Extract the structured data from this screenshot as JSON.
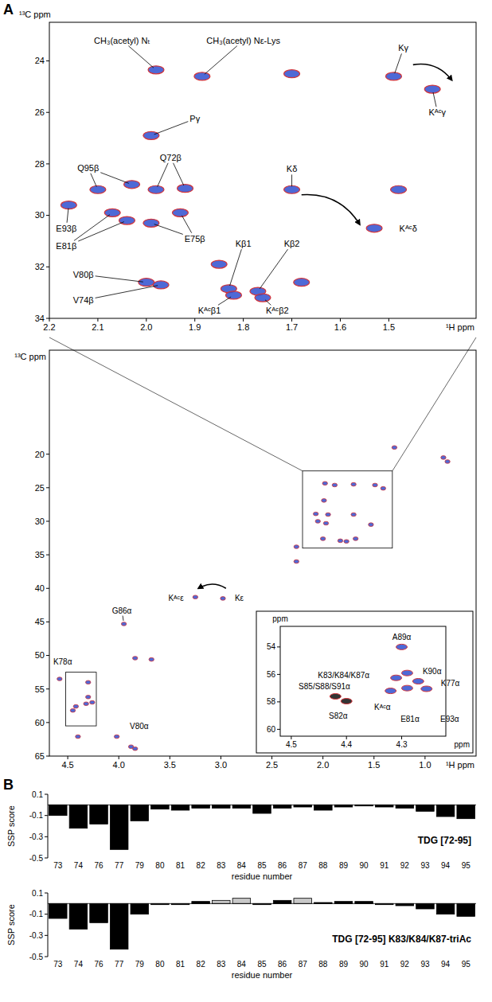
{
  "panel_labels": [
    "A",
    "B"
  ],
  "chart_data": [
    {
      "type": "scatter",
      "x_label": "¹H ppm",
      "y_label": "¹³C ppm",
      "xlim": [
        2.2,
        1.32
      ],
      "ylim": [
        22.5,
        34
      ],
      "xticks": [
        2.2,
        2.1,
        {
          "value": 2,
          "label": "2.0"
        },
        1.9,
        1.8,
        1.7,
        1.6,
        1.5
      ],
      "yticks": [
        24,
        26,
        28,
        30,
        32,
        34
      ],
      "series": [
        {
          "color": "#2f4fcf",
          "x": [
            1.98,
            1.885,
            1.7,
            1.49,
            1.41,
            1.99,
            2.1,
            2.03,
            1.98,
            1.92,
            2.16,
            2.07,
            2.04,
            1.99,
            1.93,
            1.7,
            1.53,
            1.48,
            2.0,
            1.97,
            1.85,
            1.83,
            1.82,
            1.77,
            1.76,
            1.68
          ],
          "values": [
            24.35,
            24.6,
            24.5,
            24.6,
            25.1,
            26.9,
            29.0,
            28.8,
            29.0,
            28.95,
            29.6,
            29.9,
            30.2,
            30.3,
            29.9,
            29.0,
            30.5,
            29.0,
            32.6,
            32.7,
            31.9,
            32.85,
            33.1,
            32.95,
            33.2,
            32.6
          ]
        }
      ],
      "annotations": [
        {
          "text": "CH₃(acetyl) Nₜ",
          "x": 2.05,
          "y": 23.2,
          "points": [
            [
              1.98,
              24.35
            ]
          ]
        },
        {
          "text": "CH₃(acetyl) Nε-Lys",
          "x": 1.8,
          "y": 23.2,
          "points": [
            [
              1.885,
              24.6
            ]
          ]
        },
        {
          "text": "Kγ",
          "x": 1.47,
          "y": 23.5,
          "points": [
            [
              1.49,
              24.6
            ]
          ]
        },
        {
          "text": "Kᴬᶜγ",
          "x": 1.4,
          "y": 26.0,
          "points": [
            [
              1.41,
              25.1
            ]
          ]
        },
        {
          "text": "Pγ",
          "x": 1.9,
          "y": 26.25,
          "points": [
            [
              1.99,
              26.9
            ]
          ]
        },
        {
          "text": "Q72β",
          "x": 1.95,
          "y": 27.75,
          "points": [
            [
              1.98,
              29.0
            ],
            [
              1.92,
              28.95
            ]
          ]
        },
        {
          "text": "Q95β",
          "x": 2.12,
          "y": 28.15,
          "points": [
            [
              2.1,
              29.0
            ],
            [
              2.03,
              28.8
            ]
          ]
        },
        {
          "text": "Kδ",
          "x": 1.7,
          "y": 28.2,
          "points": [
            [
              1.7,
              29.0
            ]
          ]
        },
        {
          "text": "E93β",
          "x": 2.165,
          "y": 30.5,
          "points": [
            [
              2.16,
              29.6
            ]
          ]
        },
        {
          "text": "E81β",
          "x": 2.165,
          "y": 31.2,
          "points": [
            [
              2.07,
              29.9
            ],
            [
              2.04,
              30.2
            ]
          ]
        },
        {
          "text": "E75β",
          "x": 1.9,
          "y": 30.9,
          "points": [
            [
              1.99,
              30.3
            ],
            [
              1.93,
              29.9
            ]
          ]
        },
        {
          "text": "Kᴬᶜδ",
          "x": 1.46,
          "y": 30.5
        },
        {
          "text": "Kβ1",
          "x": 1.8,
          "y": 31.1,
          "points": [
            [
              1.83,
              32.85
            ]
          ]
        },
        {
          "text": "Kβ2",
          "x": 1.7,
          "y": 31.1,
          "points": [
            [
              1.77,
              32.95
            ]
          ]
        },
        {
          "text": "V80β",
          "x": 2.13,
          "y": 32.3,
          "points": [
            [
              2.0,
              32.6
            ]
          ]
        },
        {
          "text": "V74β",
          "x": 2.13,
          "y": 33.3,
          "points": [
            [
              1.97,
              32.7
            ]
          ]
        },
        {
          "text": "Kᴬᶜβ1",
          "x": 1.87,
          "y": 33.7,
          "points": [
            [
              1.82,
              33.1
            ]
          ]
        },
        {
          "text": "Kᴬᶜβ2",
          "x": 1.73,
          "y": 33.7,
          "points": [
            [
              1.76,
              33.2
            ]
          ]
        }
      ],
      "arrows": [
        {
          "from": [
            1.45,
            24.15
          ],
          "to": [
            1.37,
            24.75
          ]
        },
        {
          "from": [
            1.68,
            29.2
          ],
          "to": [
            1.56,
            30.35
          ]
        }
      ]
    },
    {
      "type": "scatter",
      "x_label": "¹H ppm",
      "y_label": "¹³C ppm",
      "xlim": [
        4.68,
        0.5
      ],
      "ylim": [
        4.5,
        65
      ],
      "xticks": [
        4.5,
        {
          "value": 4,
          "label": "4.0"
        },
        3.5,
        {
          "value": 3,
          "label": "3.0"
        },
        2.5,
        {
          "value": 2,
          "label": "2.0"
        },
        1.5,
        {
          "value": 1,
          "label": "1.0"
        }
      ],
      "yticks": [
        20,
        25,
        30,
        35,
        40,
        45,
        50,
        55,
        60,
        65
      ],
      "series": [
        {
          "color": "#2f4fcf",
          "x": [
            1.3,
            0.82,
            0.78,
            1.98,
            1.885,
            1.7,
            1.49,
            1.41,
            1.99,
            2.07,
            1.95,
            2.05,
            1.97,
            1.7,
            1.53,
            2.0,
            1.83,
            1.77,
            1.68,
            2.26,
            2.26,
            2.98,
            3.25,
            3.95,
            3.84,
            3.68,
            4.58,
            4.45,
            4.4,
            4.02,
            3.88,
            3.84,
            4.3,
            4.3,
            4.32,
            4.42,
            4.26
          ],
          "values": [
            19.0,
            20.5,
            21.1,
            24.35,
            24.6,
            24.5,
            24.6,
            25.1,
            26.9,
            28.9,
            29.0,
            30.0,
            30.3,
            29.0,
            30.5,
            32.6,
            32.9,
            33.0,
            32.6,
            33.8,
            36.0,
            41.5,
            41.3,
            45.3,
            50.4,
            50.6,
            53.5,
            58.2,
            62.1,
            62.1,
            63.6,
            63.9,
            54.0,
            56.2,
            57.2,
            57.6,
            57.0
          ]
        }
      ],
      "annotations": [
        {
          "text": "G86α",
          "x": 3.97,
          "y": 43.3,
          "points": [
            [
              3.95,
              45.3
            ]
          ]
        },
        {
          "text": "Kε",
          "x": 2.82,
          "y": 41.4
        },
        {
          "text": "Kᴬᶜε",
          "x": 3.44,
          "y": 41.4
        },
        {
          "text": "K78α",
          "x": 4.55,
          "y": 50.9
        },
        {
          "text": "V80α",
          "x": 3.8,
          "y": 60.6
        }
      ],
      "arrows": [
        {
          "from": [
            2.95,
            40.0
          ],
          "to": [
            3.22,
            40.0
          ]
        }
      ]
    },
    {
      "type": "scatter",
      "x_label": "ppm",
      "y_label": "ppm",
      "xlim": [
        4.52,
        4.22
      ],
      "ylim": [
        52.5,
        60.5
      ],
      "xticks": [
        4.5,
        4.4,
        4.3
      ],
      "yticks": [
        54,
        56,
        58,
        60
      ],
      "series": [
        {
          "color": "#2f4fcf",
          "x": [
            4.3,
            4.29,
            4.27,
            4.31,
            4.32,
            4.29,
            4.255
          ],
          "values": [
            54.0,
            55.9,
            56.5,
            56.25,
            57.2,
            57.0,
            57.05
          ]
        },
        {
          "color": "#111111",
          "x": [
            4.42,
            4.4
          ],
          "values": [
            57.6,
            57.95
          ]
        }
      ],
      "annotations": [
        {
          "text": "A89α",
          "x": 4.3,
          "y": 53.3
        },
        {
          "text": "K90α",
          "x": 4.245,
          "y": 55.75
        },
        {
          "text": "K77α",
          "x": 4.212,
          "y": 56.65
        },
        {
          "text": "K83/K84/K87α",
          "x": 4.405,
          "y": 56.05
        },
        {
          "text": "S85/S88/S91α",
          "x": 4.44,
          "y": 56.85
        },
        {
          "text": "S82α",
          "x": 4.415,
          "y": 59.0
        },
        {
          "text": "Kᴬᶜα",
          "x": 4.335,
          "y": 58.4
        },
        {
          "text": "E81α",
          "x": 4.285,
          "y": 59.25
        },
        {
          "text": "E93α",
          "x": 4.213,
          "y": 59.25
        }
      ]
    },
    {
      "type": "bar",
      "title": "TDG [72-95]",
      "x_label": "residue number",
      "y_label": "SSP score",
      "categories": [
        73,
        74,
        76,
        77,
        79,
        80,
        81,
        82,
        83,
        84,
        85,
        86,
        87,
        88,
        89,
        90,
        91,
        92,
        93,
        94,
        95
      ],
      "values": [
        -0.1,
        -0.22,
        -0.18,
        -0.42,
        -0.15,
        -0.04,
        -0.05,
        -0.03,
        -0.03,
        -0.03,
        -0.08,
        -0.03,
        -0.02,
        -0.05,
        -0.02,
        -0.01,
        -0.02,
        -0.03,
        -0.06,
        -0.11,
        -0.13
      ],
      "color": "#000000",
      "ylim": [
        -0.5,
        0.1
      ],
      "yticks": [
        0.1,
        -0.1,
        -0.3,
        -0.5
      ]
    },
    {
      "type": "bar",
      "title": "TDG [72-95] K83/K84/K87-triAc",
      "x_label": "residue number",
      "y_label": "SSP score",
      "categories": [
        73,
        74,
        76,
        77,
        79,
        80,
        81,
        82,
        83,
        84,
        85,
        86,
        87,
        88,
        89,
        90,
        91,
        92,
        93,
        94,
        95
      ],
      "values": [
        -0.14,
        -0.24,
        -0.18,
        -0.43,
        -0.1,
        -0.01,
        -0.01,
        0.02,
        0.03,
        0.05,
        -0.01,
        0.03,
        0.05,
        0.01,
        0.02,
        0.02,
        -0.01,
        -0.02,
        -0.05,
        -0.1,
        -0.12
      ],
      "colors": [
        "#000000",
        "#000000",
        "#000000",
        "#000000",
        "#000000",
        "#000000",
        "#000000",
        "#000000",
        "#c8c8c8",
        "#c8c8c8",
        "#000000",
        "#000000",
        "#c8c8c8",
        "#000000",
        "#000000",
        "#000000",
        "#000000",
        "#000000",
        "#000000",
        "#000000",
        "#000000"
      ],
      "ylim": [
        -0.5,
        0.1
      ],
      "yticks": [
        0.1,
        -0.1,
        -0.3,
        -0.5
      ]
    }
  ]
}
